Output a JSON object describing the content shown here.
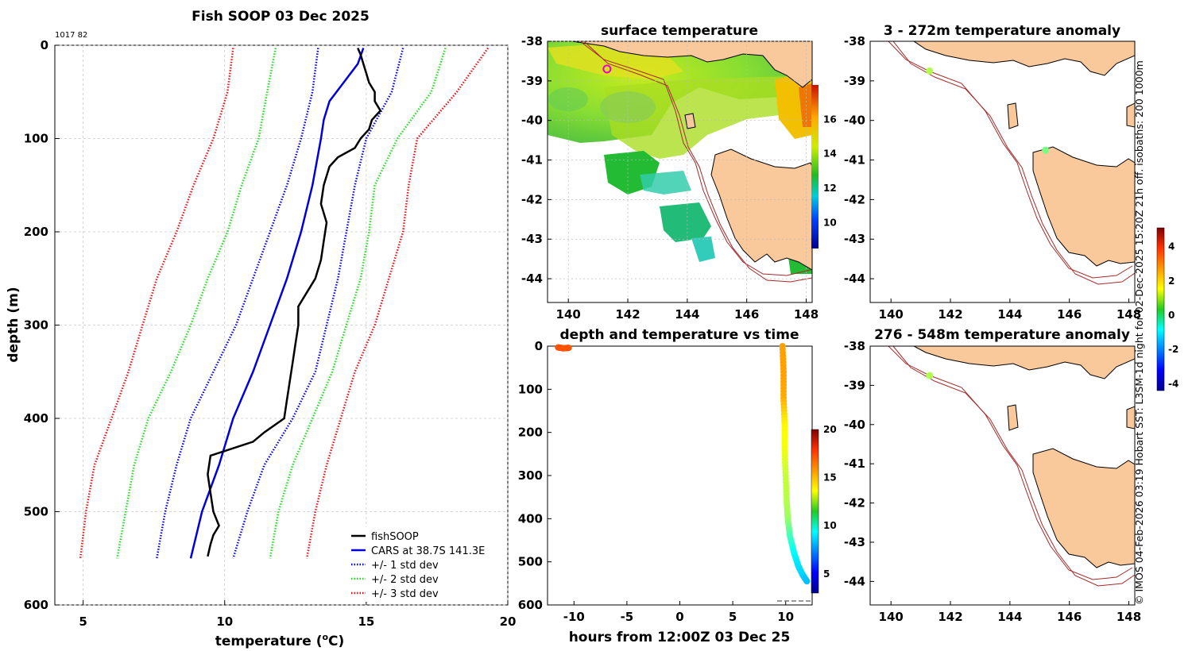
{
  "credit": "© IMOS 04-Feb-2026 03:19 Hobart SST: L3SM-1d night for 02-Dec-2025 15:20Z 21h off. isobaths: 200  1000m",
  "colors": {
    "fishSOOP": "#000000",
    "cars": "#0000dd",
    "sd1": "#0000ee",
    "sd2": "#22dd22",
    "sd3": "#ee1111",
    "land": "#f9c99b",
    "isobath": "#a52a2a"
  },
  "chart_data": [
    {
      "id": "profile",
      "type": "line",
      "title": "Fish SOOP 03 Dec 2025",
      "annotation": "1017 82",
      "xlabel": "temperature (",
      "xlabel_unit": "o",
      "xlabel_end": "C)",
      "ylabel": "depth (m)",
      "xlim": [
        4,
        20
      ],
      "ylim": [
        600,
        0
      ],
      "xticks": [
        5,
        10,
        15,
        20
      ],
      "yticks": [
        0,
        100,
        200,
        300,
        400,
        500,
        600
      ],
      "grid": true,
      "legend_position": "bottom-right",
      "series": [
        {
          "name": "fishSOOP",
          "style": "solid",
          "color": "#000000",
          "depth": [
            3,
            10,
            20,
            30,
            40,
            50,
            60,
            70,
            80,
            90,
            100,
            110,
            120,
            130,
            150,
            170,
            190,
            210,
            230,
            250,
            270,
            280,
            300,
            320,
            340,
            360,
            380,
            400,
            415,
            425,
            440,
            460,
            480,
            500,
            515,
            525,
            535,
            548
          ],
          "temp": [
            14.7,
            14.8,
            14.9,
            15.0,
            15.1,
            15.3,
            15.3,
            15.5,
            15.2,
            15.1,
            14.8,
            14.6,
            14.0,
            13.7,
            13.5,
            13.4,
            13.6,
            13.5,
            13.4,
            13.2,
            12.8,
            12.6,
            12.6,
            12.5,
            12.4,
            12.3,
            12.2,
            12.1,
            11.4,
            11.0,
            9.5,
            9.4,
            9.5,
            9.6,
            9.8,
            9.6,
            9.5,
            9.4
          ]
        },
        {
          "name": "CARS at 38.7S 141.3E",
          "style": "solid",
          "color": "#0000dd",
          "depth": [
            3,
            20,
            40,
            60,
            80,
            100,
            150,
            200,
            250,
            300,
            350,
            400,
            450,
            500,
            550
          ],
          "temp": [
            14.9,
            14.7,
            14.2,
            13.7,
            13.5,
            13.4,
            13.1,
            12.7,
            12.2,
            11.6,
            11.0,
            10.3,
            9.8,
            9.2,
            8.8
          ]
        },
        {
          "name": "+/- 1 std dev",
          "style": "dotted",
          "color": "#0000ee",
          "depth": [
            3,
            50,
            100,
            150,
            200,
            250,
            300,
            350,
            400,
            450,
            500,
            550
          ],
          "temp_low": [
            13.3,
            13.1,
            12.7,
            12.2,
            11.6,
            11.0,
            10.4,
            9.6,
            8.8,
            8.3,
            7.9,
            7.6
          ],
          "temp_high": [
            16.3,
            15.9,
            15.0,
            14.6,
            14.3,
            14.0,
            13.6,
            13.2,
            12.4,
            11.4,
            10.8,
            10.3
          ]
        },
        {
          "name": "+/- 2 std dev",
          "style": "dotted",
          "color": "#22dd22",
          "depth": [
            3,
            50,
            100,
            150,
            200,
            250,
            300,
            350,
            400,
            450,
            500,
            550
          ],
          "temp_low": [
            11.8,
            11.5,
            11.2,
            10.6,
            10.1,
            9.4,
            8.8,
            8.1,
            7.3,
            6.8,
            6.5,
            6.2
          ],
          "temp_high": [
            17.8,
            17.3,
            16.1,
            15.3,
            15.1,
            14.8,
            14.3,
            13.8,
            13.1,
            12.4,
            11.9,
            11.6
          ]
        },
        {
          "name": "+/- 3 std dev",
          "style": "dotted",
          "color": "#ee1111",
          "depth": [
            3,
            50,
            100,
            150,
            200,
            250,
            300,
            350,
            400,
            450,
            500,
            550
          ],
          "temp_low": [
            10.3,
            10.1,
            9.6,
            8.9,
            8.3,
            7.6,
            7.1,
            6.6,
            6.0,
            5.4,
            5.1,
            4.9
          ],
          "temp_high": [
            19.3,
            18.2,
            16.8,
            16.5,
            16.3,
            15.8,
            15.3,
            14.6,
            14.1,
            13.6,
            13.2,
            12.9
          ]
        }
      ]
    },
    {
      "id": "sst",
      "type": "heatmap",
      "title": "surface temperature",
      "xlim": [
        139.3,
        148.2
      ],
      "ylim": [
        -44.6,
        -38
      ],
      "xticks": [
        140,
        142,
        144,
        146,
        148
      ],
      "yticks": [
        -38,
        -39,
        -40,
        -41,
        -42,
        -43,
        -44
      ],
      "colorbar": {
        "range": [
          8.5,
          18
        ],
        "ticks": [
          10,
          12,
          14,
          16
        ]
      },
      "marker": {
        "lon": 141.3,
        "lat": -38.7,
        "style": "ring",
        "color": "#ee00cc"
      }
    },
    {
      "id": "time",
      "type": "scatter",
      "title": "depth and temperature vs time",
      "xlabel": "hours from 12:00Z 03 Dec 25",
      "xlim": [
        -12.5,
        12.5
      ],
      "ylim": [
        600,
        0
      ],
      "xticks": [
        -10,
        -5,
        0,
        5,
        10
      ],
      "yticks": [
        0,
        100,
        200,
        300,
        400,
        500,
        600
      ],
      "colorbar": {
        "range": [
          3,
          20
        ],
        "ticks": [
          5,
          10,
          15,
          20
        ]
      },
      "series": [
        {
          "name": "start",
          "hours": [
            -11.5,
            -11.0,
            -10.5
          ],
          "depth": [
            3,
            5,
            4
          ],
          "temp": [
            16.5,
            16.5,
            16.5
          ]
        },
        {
          "name": "cast",
          "hours": [
            9.7,
            9.8,
            9.8,
            9.9,
            9.9,
            10.0,
            10.1,
            10.2,
            10.4,
            10.8,
            11.2,
            11.6,
            12.0
          ],
          "depth": [
            0,
            60,
            120,
            180,
            240,
            300,
            360,
            400,
            440,
            480,
            510,
            530,
            545
          ],
          "temp": [
            15.2,
            15.2,
            15.0,
            13.8,
            13.4,
            12.7,
            12.4,
            12.0,
            10.6,
            9.4,
            8.9,
            8.7,
            8.3
          ]
        }
      ]
    },
    {
      "id": "anom1",
      "type": "map",
      "title": "3 - 272m temperature anomaly",
      "xlim": [
        139.3,
        148.2
      ],
      "ylim": [
        -44.6,
        -38
      ],
      "xticks": [
        140,
        142,
        144,
        146,
        148
      ],
      "yticks": [
        -38,
        -39,
        -40,
        -41,
        -42,
        -43,
        -44
      ],
      "points": [
        {
          "lon": 141.3,
          "lat": -38.75,
          "anomaly": 0.8
        },
        {
          "lon": 145.2,
          "lat": -40.75,
          "anomaly": 0.3
        }
      ]
    },
    {
      "id": "anom2",
      "type": "map",
      "title": "276 - 548m temperature anomaly",
      "xlim": [
        139.3,
        148.2
      ],
      "ylim": [
        -44.6,
        -38
      ],
      "xticks": [
        140,
        142,
        144,
        146,
        148
      ],
      "yticks": [
        -38,
        -39,
        -40,
        -41,
        -42,
        -43,
        -44
      ],
      "points": [
        {
          "lon": 141.3,
          "lat": -38.75,
          "anomaly": 0.8
        }
      ]
    },
    {
      "id": "anomaly_colorbar",
      "type": "colorbar",
      "range": [
        -4.4,
        5.1
      ],
      "ticks": [
        -4,
        -2,
        0,
        2,
        4
      ]
    }
  ]
}
